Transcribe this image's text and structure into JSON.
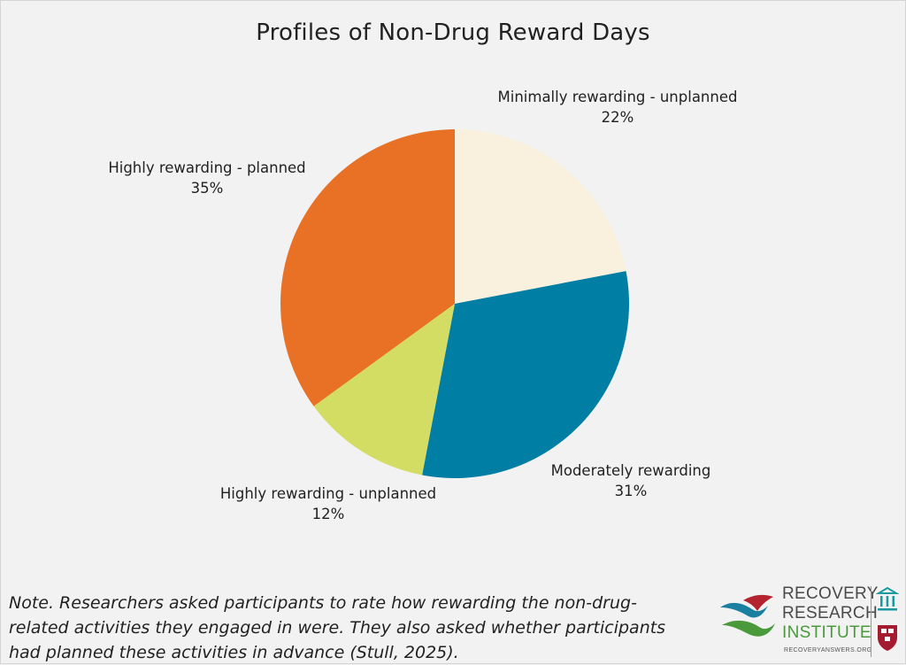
{
  "chart_data": {
    "type": "pie",
    "title": "Profiles of Non-Drug Reward Days",
    "categories": [
      "Minimally rewarding - unplanned",
      "Moderately rewarding",
      "Highly rewarding - unplanned",
      "Highly rewarding - planned"
    ],
    "values": [
      22,
      31,
      12,
      35
    ],
    "unit": "%",
    "colors": [
      "#f9f1de",
      "#007ea3",
      "#d4dd63",
      "#e87126"
    ],
    "start_angle": "12 o'clock",
    "direction": "clockwise",
    "legend": "none",
    "note": "Note. Researchers asked participants to rate how rewarding the non-drug-related activities they engaged in were. They also asked whether participants had planned these activities in advance (Stull, 2025)."
  },
  "display": {
    "values": [
      "22%",
      "31%",
      "12%",
      "35%"
    ]
  },
  "logo": {
    "line1": "RECOVERY",
    "line2": "RESEARCH",
    "line3": "INSTITUTE",
    "url": "RECOVERYANSWERS.ORG"
  }
}
